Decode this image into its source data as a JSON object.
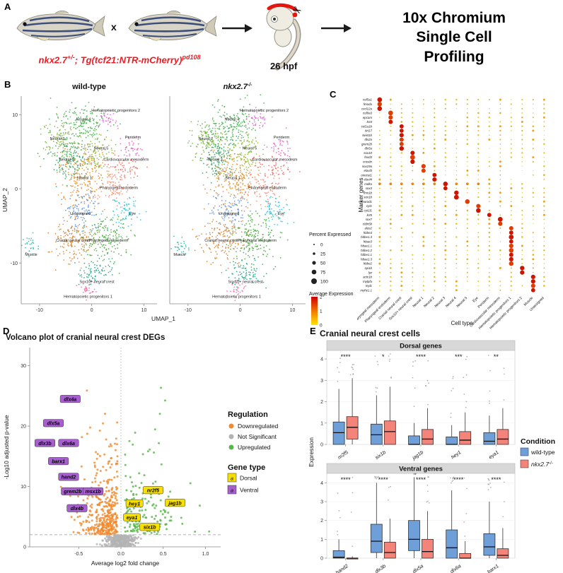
{
  "panels": {
    "a": "A",
    "b": "B",
    "c": "C",
    "d": "D",
    "e": "E"
  },
  "panelA": {
    "cross": "x",
    "genotype": {
      "gene": "nkx2.7",
      "allele": "+/-",
      "rest": "; Tg(tcf21:NTR-mCherry)",
      "clone": "pd108"
    },
    "genotype_color": "#ed1c24",
    "timepoint": "26 hpf",
    "method_lines": [
      "10x Chromium",
      "Single Cell",
      "Profiling"
    ],
    "icons": {
      "scissors": "✂"
    }
  },
  "chart_data": {
    "umap": {
      "type": "scatter",
      "titles": [
        {
          "text": "wild-type"
        },
        {
          "text": "nkx2.7",
          "sup": "-/-"
        }
      ],
      "xlabel": "UMAP_1",
      "ylabel": "UMAP_2",
      "xticks": [
        -10,
        0,
        10
      ],
      "yticks": [
        -10,
        0,
        10
      ],
      "xlim": [
        -13.5,
        12.5
      ],
      "ylim": [
        -15.5,
        12.5
      ],
      "clusters": [
        {
          "name": "Neural 4",
          "color": "#3fae49",
          "cx": -1.6,
          "cy": 8.6,
          "sx": 2.4,
          "sy": 1.5,
          "n": 170,
          "lx": -1.6,
          "ly": 9.2
        },
        {
          "name": "Hematopoietic progenitors 2",
          "color": "#dd66d8",
          "cx": 3.1,
          "cy": 9.3,
          "sx": 0.9,
          "sy": 0.6,
          "n": 35,
          "lx": 4.6,
          "ly": 10.4
        },
        {
          "name": "Neural 2",
          "color": "#7fb340",
          "cx": -6.0,
          "cy": 6.6,
          "sx": 1.7,
          "sy": 1.4,
          "n": 120,
          "lx": -6.6,
          "ly": 6.6
        },
        {
          "name": "Neural 3",
          "color": "#2f9e5f",
          "cx": -4.3,
          "cy": 4.0,
          "sx": 1.8,
          "sy": 1.5,
          "n": 140,
          "lx": -4.8,
          "ly": 3.8
        },
        {
          "name": "Neural 5",
          "color": "#8ab82e",
          "cx": 0.9,
          "cy": 4.8,
          "sx": 1.5,
          "sy": 1.3,
          "n": 90,
          "lx": 1.8,
          "ly": 5.3
        },
        {
          "name": "Neural 1",
          "color": "#e3902c",
          "cx": -1.4,
          "cy": 1.6,
          "sx": 2.1,
          "sy": 1.9,
          "n": 210,
          "lx": -1.4,
          "ly": 1.3
        },
        {
          "name": "Periderm",
          "color": "#e05fc0",
          "cx": 7.6,
          "cy": 5.6,
          "sx": 1.0,
          "sy": 0.8,
          "n": 40,
          "lx": 7.9,
          "ly": 6.8
        },
        {
          "name": "Cardiovascular mesoderm",
          "color": "#ef6a5e",
          "cx": 6.1,
          "cy": 2.9,
          "sx": 1.7,
          "sy": 0.9,
          "n": 60,
          "lx": 6.6,
          "ly": 3.8
        },
        {
          "name": "Pharyngeal endoderm",
          "color": "#f28d76",
          "cx": 4.4,
          "cy": 0.1,
          "sx": 1.6,
          "sy": 1.1,
          "n": 85,
          "lx": 5.2,
          "ly": 0.0
        },
        {
          "name": "Eye",
          "color": "#2bc5de",
          "cx": 6.6,
          "cy": -3.1,
          "sx": 1.4,
          "sy": 1.1,
          "n": 70,
          "lx": 7.8,
          "ly": -3.5
        },
        {
          "name": "Unassigned",
          "color": "#5d8fdc",
          "cx": -2.0,
          "cy": -3.2,
          "sx": 1.8,
          "sy": 1.3,
          "n": 100,
          "lx": -2.2,
          "ly": -3.5
        },
        {
          "name": "Muscle",
          "color": "#1fb6ae",
          "cx": -11.6,
          "cy": -7.6,
          "sx": 0.8,
          "sy": 0.7,
          "n": 28,
          "lx": -11.6,
          "ly": -9.0
        },
        {
          "name": "Cranial neural crest",
          "color": "#d2832a",
          "cx": -3.4,
          "cy": -6.8,
          "sx": 2.1,
          "sy": 1.5,
          "n": 160,
          "lx": -3.6,
          "ly": -7.1
        },
        {
          "name": "Pharyngeal mesoderm",
          "color": "#46a83c",
          "cx": 2.6,
          "cy": -6.6,
          "sx": 2.3,
          "sy": 1.6,
          "n": 170,
          "lx": 3.2,
          "ly": -7.1
        },
        {
          "name": "Sox10+ neural crest",
          "color": "#17a67c",
          "cx": 1.0,
          "cy": -11.3,
          "sx": 1.7,
          "sy": 0.9,
          "n": 75,
          "lx": 1.0,
          "ly": -12.7
        },
        {
          "name": "Hematopoietic progenitors 1",
          "color": "#ef6fa8",
          "cx": -0.7,
          "cy": -13.6,
          "sx": 0.9,
          "sy": 0.5,
          "n": 30,
          "lx": -0.7,
          "ly": -14.7
        }
      ]
    },
    "dotplot": {
      "type": "heatmap-dot",
      "xlabel": "Cell type",
      "ylabel": "Marker genes",
      "genes": [
        "col5a1",
        "fmoda",
        "cxcl12a",
        "col9a3",
        "epcam",
        "krt4",
        "col1a1b",
        "krt17",
        "twist1b",
        "dlx2a",
        "grem2b",
        "dlx5a",
        "sox10",
        "foxd3",
        "crestin",
        "sox19a",
        "elavl3",
        "onecut1",
        "elavl4",
        "mdka",
        "sox3",
        "lmx1b",
        "sox1b",
        "neurod1",
        "cyt1",
        "cyt1l1",
        "krt5",
        "sox7",
        "cldn5b",
        "alas2",
        "hbbe3",
        "hbbe1.3",
        "hbae3",
        "hbae1.1",
        "hbbe1.2",
        "hbbe1.1",
        "hbae1.3",
        "hbbe2",
        "spi1b",
        "lyz",
        "actc1b",
        "mylpfa",
        "myl1",
        "myhz1.1"
      ],
      "cell_types": [
        "Pharyngeal mesoderm",
        "Pharyngeal endoderm",
        "Cranial neural crest",
        "Sox10+ neural crest",
        "Neural 1",
        "Neural 2",
        "Neural 3",
        "Neural 4",
        "Neural 5",
        "Eye",
        "Periderm",
        "Cardiovascular mesoderm",
        "Hematopoietic progenitors 1",
        "Hematopoietic progenitors 2",
        "Muscle",
        "Unassigned"
      ],
      "primary_type_index": [
        0,
        0,
        0,
        1,
        1,
        1,
        2,
        2,
        2,
        2,
        2,
        2,
        3,
        3,
        3,
        4,
        4,
        5,
        5,
        6,
        6,
        7,
        7,
        8,
        9,
        9,
        10,
        11,
        11,
        12,
        12,
        12,
        12,
        12,
        12,
        12,
        12,
        12,
        13,
        13,
        14,
        14,
        14,
        14
      ],
      "wide_orange_gene": "mdka",
      "legend_percent": {
        "title": "Percent Expressed",
        "values": [
          0,
          25,
          50,
          75,
          100
        ]
      },
      "legend_avg": {
        "title": "Average Expression",
        "ticks": [
          0,
          1,
          2
        ],
        "low": "#ffe200",
        "mid": "#f07800",
        "high": "#cc0000"
      }
    },
    "volcano": {
      "type": "scatter",
      "title": "Volcano plot of cranial neural crest DEGs",
      "xlabel": "Average log2 fold change",
      "ylabel": "-Log10 adjusted p-value",
      "xticks": [
        "-0.5",
        "0.0",
        "0.5",
        "1.0"
      ],
      "xtick_values": [
        -0.5,
        0.0,
        0.5,
        1.0
      ],
      "yticks": [
        0,
        10,
        20,
        30
      ],
      "xlim": [
        -1.08,
        1.18
      ],
      "ylim": [
        0,
        33
      ],
      "threshold_y": 2,
      "groups": [
        {
          "name": "Downregulated",
          "color": "#f08a2e",
          "n_points": 380
        },
        {
          "name": "Not Significant",
          "color": "#b3b3b3",
          "n_points": 320
        },
        {
          "name": "Upregulated",
          "color": "#59b44a",
          "n_points": 160
        }
      ],
      "legend": {
        "regulation_title": "Regulation",
        "gene_type_title": "Gene type",
        "dorsal": {
          "label": "Dorsal",
          "color": "#f7df00",
          "key": "a"
        },
        "ventral": {
          "label": "Ventral",
          "color": "#a75fd0",
          "key": "a"
        }
      },
      "labels": [
        {
          "gene": "dlx4a",
          "x": -0.6,
          "y": 24.5,
          "type": "ventral"
        },
        {
          "gene": "dlx5a",
          "x": -0.8,
          "y": 20.5,
          "type": "ventral"
        },
        {
          "gene": "dlx3b",
          "x": -0.9,
          "y": 17.2,
          "type": "ventral"
        },
        {
          "gene": "dlx6a",
          "x": -0.62,
          "y": 17.2,
          "type": "ventral"
        },
        {
          "gene": "barx1",
          "x": -0.74,
          "y": 14.2,
          "type": "ventral"
        },
        {
          "gene": "hand2",
          "x": -0.62,
          "y": 11.6,
          "type": "ventral"
        },
        {
          "gene": "grem2b",
          "x": -0.57,
          "y": 9.2,
          "type": "ventral"
        },
        {
          "gene": "msx1b",
          "x": -0.33,
          "y": 9.2,
          "type": "ventral"
        },
        {
          "gene": "dlx4b",
          "x": -0.52,
          "y": 6.4,
          "type": "ventral"
        },
        {
          "gene": "nr2f5",
          "x": 0.38,
          "y": 9.4,
          "type": "dorsal"
        },
        {
          "gene": "jag1b",
          "x": 0.64,
          "y": 7.3,
          "type": "dorsal"
        },
        {
          "gene": "hey1",
          "x": 0.16,
          "y": 7.2,
          "type": "dorsal"
        },
        {
          "gene": "eya1",
          "x": 0.13,
          "y": 4.9,
          "type": "dorsal"
        },
        {
          "gene": "six1b",
          "x": 0.34,
          "y": 3.3,
          "type": "dorsal"
        }
      ]
    },
    "boxplots": {
      "type": "box",
      "title": "Cranial neural crest cells",
      "ylabel": "Expression",
      "facets": [
        {
          "name": "Dorsal genes",
          "ylim": [
            0,
            4.4
          ],
          "yticks": [
            0,
            1,
            2,
            3,
            4
          ],
          "genes": [
            "nr2f5",
            "six1b",
            "jag1b",
            "hey1",
            "eya1"
          ],
          "significance": [
            "****",
            "*",
            "****",
            "***",
            "**"
          ],
          "wild_type": [
            [
              0,
              0,
              0.55,
              1.05,
              2.6
            ],
            [
              0,
              0,
              0.45,
              0.95,
              2.3
            ],
            [
              0,
              0,
              0,
              0.4,
              1.0
            ],
            [
              0,
              0,
              0,
              0.35,
              0.9
            ],
            [
              0,
              0,
              0.15,
              0.55,
              1.35
            ]
          ],
          "mutant": [
            [
              0,
              0.25,
              0.8,
              1.3,
              3.1
            ],
            [
              0,
              0,
              0.6,
              1.1,
              2.7
            ],
            [
              0,
              0,
              0.25,
              0.7,
              1.7
            ],
            [
              0,
              0,
              0.2,
              0.6,
              1.5
            ],
            [
              0,
              0,
              0.25,
              0.7,
              1.7
            ]
          ]
        },
        {
          "name": "Ventral genes",
          "ylim": [
            0,
            4.5
          ],
          "yticks": [
            0,
            1,
            2,
            3,
            4
          ],
          "genes": [
            "hand2",
            "dlx3b",
            "dlx5a",
            "dlx6a",
            "barx1"
          ],
          "significance": [
            "****",
            "****",
            "****",
            "****",
            "****"
          ],
          "wild_type": [
            [
              0,
              0,
              0.05,
              0.4,
              1.0
            ],
            [
              0,
              0.3,
              0.9,
              1.8,
              4.0
            ],
            [
              0,
              0.4,
              1.0,
              2.0,
              4.3
            ],
            [
              0,
              0,
              0.55,
              1.5,
              3.6
            ],
            [
              0,
              0.15,
              0.6,
              1.3,
              3.0
            ]
          ],
          "mutant": [
            [
              0,
              0,
              0,
              0,
              0.1
            ],
            [
              0,
              0,
              0.3,
              0.85,
              2.1
            ],
            [
              0,
              0,
              0.35,
              1.0,
              2.5
            ],
            [
              0,
              0,
              0,
              0.25,
              0.9
            ],
            [
              0,
              0,
              0.15,
              0.5,
              1.6
            ]
          ]
        }
      ],
      "legend": {
        "title": "Condition",
        "items": [
          {
            "label": "wild-type",
            "color": "#6f9fd8"
          },
          {
            "label": "nkx2.7",
            "sup": "-/-",
            "color": "#f4837a",
            "italic": true
          }
        ]
      }
    }
  }
}
